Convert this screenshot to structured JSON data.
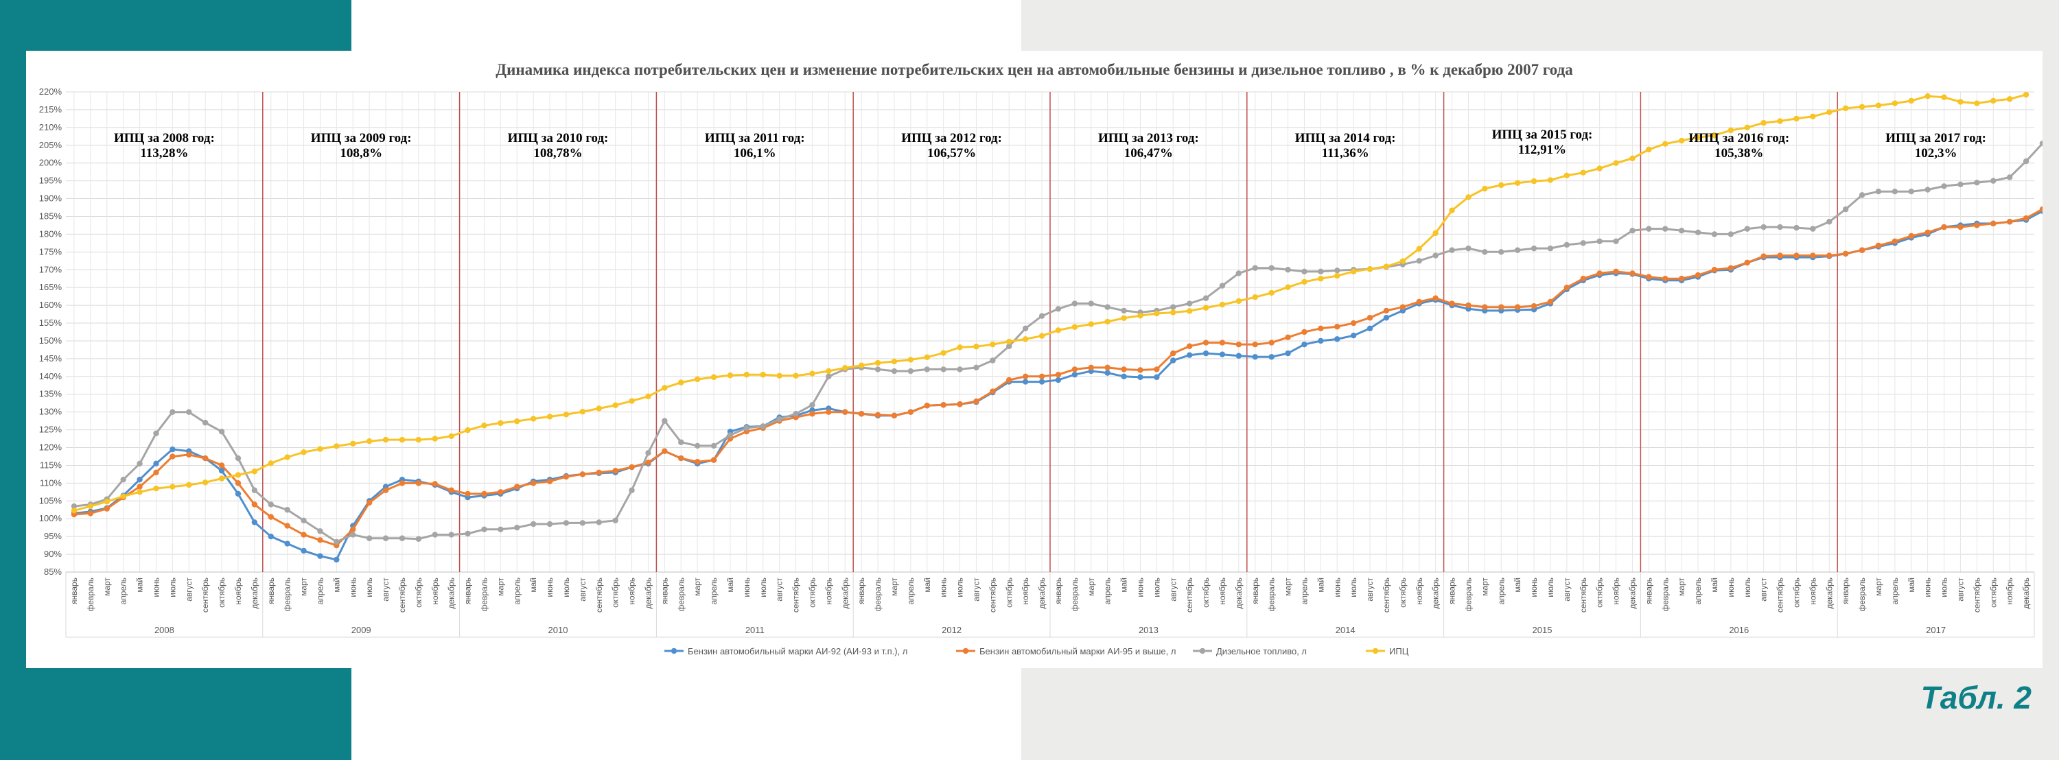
{
  "table_label": "Табл. 2",
  "chart_data": {
    "type": "line",
    "title": "Динамика индекса потребительских цен и изменение потребительских цен на автомобильные бензины  и дизельное топливо , в % к декабрю 2007 года",
    "y_unit": "%",
    "ylim": [
      85,
      220
    ],
    "y_ticks": [
      85,
      90,
      95,
      100,
      105,
      110,
      115,
      120,
      125,
      130,
      135,
      140,
      145,
      150,
      155,
      160,
      165,
      170,
      175,
      180,
      185,
      190,
      195,
      200,
      205,
      210,
      215,
      220
    ],
    "y_tick_labels": [
      "85%",
      "90%",
      "95%",
      "100%",
      "105%",
      "110%",
      "115%",
      "120%",
      "125%",
      "130%",
      "135%",
      "140%",
      "145%",
      "150%",
      "155%",
      "160%",
      "165%",
      "170%",
      "175%",
      "180%",
      "185%",
      "190%",
      "195%",
      "200%",
      "205%",
      "210%",
      "215%",
      "220%"
    ],
    "grid": true,
    "legend_position": "bottom",
    "months": [
      "январь",
      "февраль",
      "март",
      "апрель",
      "май",
      "июнь",
      "июль",
      "август",
      "сентябрь",
      "октябрь",
      "ноябрь",
      "декабрь"
    ],
    "years": [
      "2008",
      "2009",
      "2010",
      "2011",
      "2012",
      "2013",
      "2014",
      "2015",
      "2016",
      "2017"
    ],
    "annotations": [
      {
        "line1": "ИПЦ  за 2008 год:",
        "line2": "113,28%"
      },
      {
        "line1": "ИПЦ  за 2009 год:",
        "line2": "108,8%"
      },
      {
        "line1": "ИПЦ  за 2010 год:",
        "line2": "108,78%"
      },
      {
        "line1": "ИПЦ  за 2011 год:",
        "line2": "106,1%"
      },
      {
        "line1": "ИПЦ  за 2012 год:",
        "line2": "106,57%"
      },
      {
        "line1": "ИПЦ  за 2013 год:",
        "line2": "106,47%"
      },
      {
        "line1": "ИПЦ  за 2014 год:",
        "line2": "111,36%"
      },
      {
        "line1": "ИПЦ  за 2015 год:",
        "line2": "112,91%"
      },
      {
        "line1": "ИПЦ  за 2016 год:",
        "line2": "105,38%"
      },
      {
        "line1": "ИПЦ  за 2017 год:",
        "line2": "102,3%"
      }
    ],
    "series": [
      {
        "name": "Бензин автомобильный марки АИ-92 (АИ-93 и т.п.), л",
        "color": "#4f8fce",
        "values": [
          101.5,
          102,
          103,
          106.5,
          111,
          115.5,
          119.5,
          119,
          117,
          113.5,
          107,
          99,
          95,
          93,
          91,
          89.5,
          88.5,
          98,
          105,
          109,
          111,
          110.5,
          109.5,
          107.5,
          106,
          106.5,
          107,
          108.5,
          110.5,
          111,
          112,
          112.5,
          112.8,
          113,
          114.5,
          115.5,
          119,
          117,
          115.5,
          116.5,
          124.5,
          125.8,
          126,
          128.5,
          129,
          130.5,
          131,
          130,
          129.5,
          129,
          129,
          130,
          131.8,
          132,
          132.2,
          132.8,
          135.5,
          138.5,
          138.5,
          138.5,
          139,
          140.5,
          141.5,
          141,
          140,
          139.8,
          139.8,
          144.5,
          146,
          146.5,
          146.2,
          145.8,
          145.5,
          145.5,
          146.5,
          149,
          150,
          150.5,
          151.5,
          153.5,
          156.5,
          158.5,
          160.5,
          161.5,
          160,
          159,
          158.5,
          158.5,
          158.7,
          158.8,
          160.5,
          164.5,
          167,
          168.5,
          169,
          168.8,
          167.5,
          167,
          167,
          168,
          169.8,
          170,
          172,
          173.5,
          173.5,
          173.5,
          173.5,
          173.8,
          174.5,
          175.5,
          176.5,
          177.5,
          179,
          180,
          182,
          182.5,
          183,
          183,
          183.5,
          184,
          186.5
        ]
      },
      {
        "name": "Бензин автомобильный марки АИ-95 и выше, л",
        "color": "#ed7d31",
        "values": [
          101.2,
          101.5,
          102.8,
          106,
          109,
          113,
          117.5,
          118,
          117,
          115,
          110,
          104,
          100.5,
          98,
          95.5,
          94,
          92.5,
          97,
          104.5,
          108,
          110,
          110,
          109.8,
          108,
          107,
          107,
          107.5,
          109,
          110,
          110.5,
          111.8,
          112.5,
          113,
          113.5,
          114.5,
          115.8,
          119,
          117,
          116,
          116.5,
          122.5,
          124.5,
          125.5,
          127.5,
          128.5,
          129.5,
          130,
          130,
          129.5,
          129.2,
          129,
          130,
          131.8,
          132,
          132.2,
          133,
          135.8,
          139,
          140,
          140,
          140.5,
          142,
          142.5,
          142.5,
          142,
          141.8,
          142,
          146.5,
          148.5,
          149.5,
          149.5,
          149,
          149,
          149.5,
          151,
          152.5,
          153.5,
          154,
          155,
          156.5,
          158.5,
          159.5,
          161,
          162,
          160.5,
          160,
          159.5,
          159.5,
          159.5,
          159.8,
          161,
          165,
          167.5,
          169,
          169.5,
          169,
          168,
          167.5,
          167.5,
          168.5,
          170,
          170.5,
          172,
          173.8,
          174,
          174,
          174,
          174,
          174.5,
          175.5,
          176.8,
          178,
          179.5,
          180.5,
          182,
          182,
          182.5,
          183,
          183.5,
          184.5,
          187
        ]
      },
      {
        "name": "Дизельное топливо, л",
        "color": "#a5a5a5",
        "values": [
          103.5,
          104,
          105.5,
          111,
          115.5,
          124,
          130,
          130,
          127,
          124.5,
          117,
          108,
          104,
          102.5,
          99.5,
          96.5,
          93.5,
          95.5,
          94.5,
          94.5,
          94.5,
          94.3,
          95.5,
          95.5,
          95.8,
          97,
          97,
          97.5,
          98.5,
          98.5,
          98.8,
          98.8,
          99,
          99.5,
          108,
          118.5,
          127.5,
          121.5,
          120.5,
          120.5,
          123.5,
          125.5,
          126,
          128,
          129.5,
          132,
          140,
          142,
          142.5,
          142,
          141.5,
          141.5,
          142,
          142,
          142,
          142.5,
          144.5,
          148.5,
          153.5,
          157,
          159,
          160.5,
          160.5,
          159.5,
          158.5,
          158,
          158.5,
          159.5,
          160.5,
          162,
          165.5,
          169,
          170.5,
          170.5,
          170,
          169.5,
          169.5,
          169.8,
          170,
          170.2,
          170.8,
          171.5,
          172.5,
          174,
          175.5,
          176,
          175,
          175,
          175.5,
          176,
          176,
          177,
          177.5,
          178,
          178,
          181,
          181.5,
          181.5,
          181,
          180.5,
          180,
          180,
          181.5,
          182,
          182,
          181.8,
          181.5,
          183.5,
          187,
          191,
          192,
          192,
          192,
          192.5,
          193.5,
          194,
          194.5,
          195,
          196,
          200.5,
          205.5
        ]
      },
      {
        "name": "ИПЦ",
        "color": "#f7c325",
        "values": [
          102.3,
          103.5,
          104.8,
          106.3,
          107.5,
          108.5,
          109,
          109.5,
          110.2,
          111.3,
          112.3,
          113.3,
          115.6,
          117.3,
          118.7,
          119.6,
          120.4,
          121.1,
          121.8,
          122.2,
          122.2,
          122.2,
          122.5,
          123.2,
          124.9,
          126.2,
          126.9,
          127.4,
          128.1,
          128.7,
          129.3,
          130.1,
          131,
          131.9,
          133.1,
          134.4,
          136.8,
          138.3,
          139.2,
          139.8,
          140.3,
          140.5,
          140.5,
          140.2,
          140.2,
          140.8,
          141.5,
          142.4,
          143.1,
          143.8,
          144.2,
          144.7,
          145.4,
          146.6,
          148.2,
          148.4,
          149,
          149.8,
          150.5,
          151.4,
          153,
          153.9,
          154.7,
          155.4,
          156.4,
          157.1,
          157.7,
          158,
          158.4,
          159.3,
          160.2,
          161.2,
          162.3,
          163.5,
          165.1,
          166.6,
          167.5,
          168.3,
          169.5,
          170.2,
          170.9,
          172.4,
          175.9,
          180.3,
          186.7,
          190.4,
          192.8,
          193.8,
          194.4,
          194.9,
          195.2,
          196.5,
          197.3,
          198.5,
          200,
          201.3,
          203.8,
          205.4,
          206.3,
          207.2,
          207.8,
          209.2,
          210,
          211.3,
          211.8,
          212.5,
          213.1,
          214.3,
          215.4,
          215.8,
          216.2,
          216.8,
          217.5,
          218.8,
          218.5,
          217.2,
          216.8,
          217.5,
          218,
          219.2
        ]
      }
    ]
  }
}
